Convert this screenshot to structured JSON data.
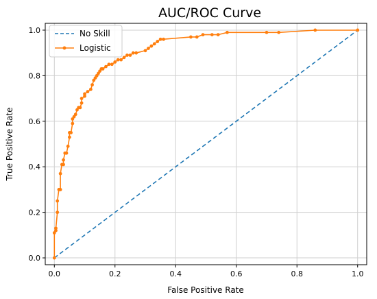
{
  "chart_data": {
    "type": "line",
    "title": "AUC/ROC Curve",
    "xlabel": "False Positive Rate",
    "ylabel": "True Positive Rate",
    "xlim": [
      -0.03,
      1.03
    ],
    "ylim": [
      -0.03,
      1.03
    ],
    "grid": true,
    "legend_position": "top-left",
    "xticks": [
      0.0,
      0.2,
      0.4,
      0.6,
      0.8,
      1.0
    ],
    "yticks": [
      0.0,
      0.2,
      0.4,
      0.6,
      0.8,
      1.0
    ],
    "xtick_labels": [
      "0.0",
      "0.2",
      "0.4",
      "0.6",
      "0.8",
      "1.0"
    ],
    "ytick_labels": [
      "0.0",
      "0.2",
      "0.4",
      "0.6",
      "0.8",
      "1.0"
    ],
    "series": [
      {
        "name": "No Skill",
        "style": "dashed",
        "color": "#1f77b4",
        "x": [
          0.0,
          1.0
        ],
        "y": [
          0.0,
          1.0
        ]
      },
      {
        "name": "Logistic",
        "style": "solid-marker",
        "color": "#ff7f0e",
        "x": [
          0.0,
          0.0,
          0.005,
          0.005,
          0.01,
          0.01,
          0.015,
          0.02,
          0.02,
          0.025,
          0.03,
          0.03,
          0.035,
          0.04,
          0.045,
          0.05,
          0.05,
          0.055,
          0.06,
          0.06,
          0.065,
          0.07,
          0.075,
          0.08,
          0.085,
          0.09,
          0.09,
          0.1,
          0.1,
          0.11,
          0.12,
          0.125,
          0.13,
          0.135,
          0.14,
          0.145,
          0.15,
          0.155,
          0.16,
          0.17,
          0.18,
          0.19,
          0.2,
          0.21,
          0.22,
          0.23,
          0.24,
          0.25,
          0.26,
          0.27,
          0.3,
          0.31,
          0.32,
          0.33,
          0.34,
          0.35,
          0.36,
          0.45,
          0.47,
          0.49,
          0.52,
          0.54,
          0.57,
          0.7,
          0.74,
          0.86,
          1.0
        ],
        "y": [
          0.0,
          0.11,
          0.12,
          0.13,
          0.2,
          0.25,
          0.3,
          0.3,
          0.37,
          0.41,
          0.41,
          0.43,
          0.46,
          0.46,
          0.49,
          0.53,
          0.55,
          0.55,
          0.59,
          0.61,
          0.62,
          0.63,
          0.65,
          0.66,
          0.66,
          0.68,
          0.7,
          0.71,
          0.72,
          0.73,
          0.74,
          0.76,
          0.78,
          0.79,
          0.8,
          0.81,
          0.82,
          0.83,
          0.83,
          0.84,
          0.85,
          0.85,
          0.86,
          0.87,
          0.87,
          0.88,
          0.89,
          0.89,
          0.9,
          0.9,
          0.91,
          0.92,
          0.93,
          0.94,
          0.95,
          0.96,
          0.96,
          0.97,
          0.97,
          0.98,
          0.98,
          0.98,
          0.99,
          0.99,
          0.99,
          1.0,
          1.0
        ]
      }
    ]
  }
}
